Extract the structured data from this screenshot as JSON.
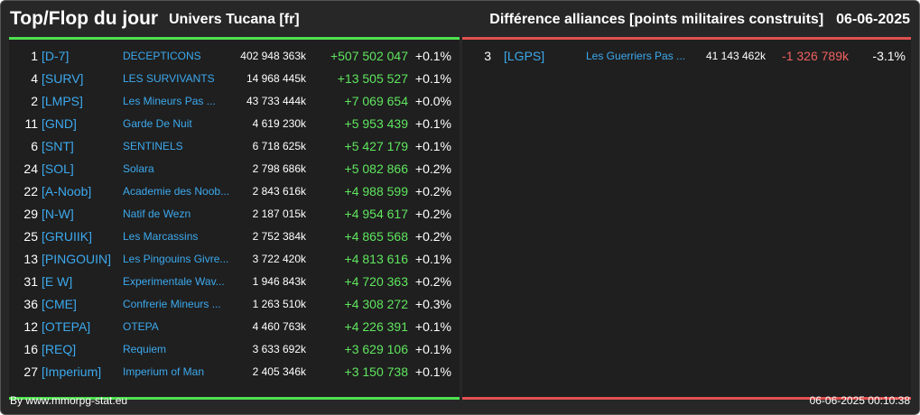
{
  "header": {
    "title": "Top/Flop du jour",
    "universe": "Univers Tucana [fr]",
    "subtitle": "Différence alliances [points militaires construits]",
    "date": "06-06-2025"
  },
  "colors": {
    "top_accent": "#4fe04f",
    "flop_accent": "#e05050",
    "tag": "#3ca9ee",
    "gain": "#5fe65f",
    "loss": "#f06060"
  },
  "top": [
    {
      "rank": "1",
      "tag": "[D-7]",
      "name": "DECEPTICONS",
      "points": "402 948 363k",
      "diff": "+507 502 047",
      "pct": "+0.1%"
    },
    {
      "rank": "4",
      "tag": "[SURV]",
      "name": "LES SURVIVANTS",
      "points": "14 968 445k",
      "diff": "+13 505 527",
      "pct": "+0.1%"
    },
    {
      "rank": "2",
      "tag": "[LMPS]",
      "name": "Les Mineurs Pas ...",
      "points": "43 733 444k",
      "diff": "+7 069 654",
      "pct": "+0.0%"
    },
    {
      "rank": "11",
      "tag": "[GND]",
      "name": "Garde De Nuit",
      "points": "4 619 230k",
      "diff": "+5 953 439",
      "pct": "+0.1%"
    },
    {
      "rank": "6",
      "tag": "[SNT]",
      "name": "SENTINELS",
      "points": "6 718 625k",
      "diff": "+5 427 179",
      "pct": "+0.1%"
    },
    {
      "rank": "24",
      "tag": "[SOL]",
      "name": "Solara",
      "points": "2 798 686k",
      "diff": "+5 082 866",
      "pct": "+0.2%"
    },
    {
      "rank": "22",
      "tag": "[A-Noob]",
      "name": "Academie des Noob...",
      "points": "2 843 616k",
      "diff": "+4 988 599",
      "pct": "+0.2%"
    },
    {
      "rank": "29",
      "tag": "[N-W]",
      "name": "Natif de Wezn",
      "points": "2 187 015k",
      "diff": "+4 954 617",
      "pct": "+0.2%"
    },
    {
      "rank": "25",
      "tag": "[GRUIIK]",
      "name": "Les Marcassins",
      "points": "2 752 384k",
      "diff": "+4 865 568",
      "pct": "+0.2%"
    },
    {
      "rank": "13",
      "tag": "[PINGOUIN]",
      "name": "Les Pingouins Givre...",
      "points": "3 722 420k",
      "diff": "+4 813 616",
      "pct": "+0.1%"
    },
    {
      "rank": "31",
      "tag": "[E W]",
      "name": "Experimentale Wav...",
      "points": "1 946 843k",
      "diff": "+4 720 363",
      "pct": "+0.2%"
    },
    {
      "rank": "36",
      "tag": "[CME]",
      "name": "Confrerie Mineurs ...",
      "points": "1 263 510k",
      "diff": "+4 308 272",
      "pct": "+0.3%"
    },
    {
      "rank": "12",
      "tag": "[OTEPA]",
      "name": "OTEPA",
      "points": "4 460 763k",
      "diff": "+4 226 391",
      "pct": "+0.1%"
    },
    {
      "rank": "16",
      "tag": "[REQ]",
      "name": "Requiem",
      "points": "3 633 692k",
      "diff": "+3 629 106",
      "pct": "+0.1%"
    },
    {
      "rank": "27",
      "tag": "[Imperium]",
      "name": "Imperium of Man",
      "points": "2 405 346k",
      "diff": "+3 150 738",
      "pct": "+0.1%"
    }
  ],
  "flop": [
    {
      "rank": "3",
      "tag": "[LGPS]",
      "name": "Les Guerriers Pas ...",
      "points": "41 143 462k",
      "diff": "-1 326 789k",
      "pct": "-3.1%"
    }
  ],
  "footer": {
    "credit": "By www.mmorpg-stat.eu",
    "timestamp": "06-06-2025 00:10:38"
  }
}
